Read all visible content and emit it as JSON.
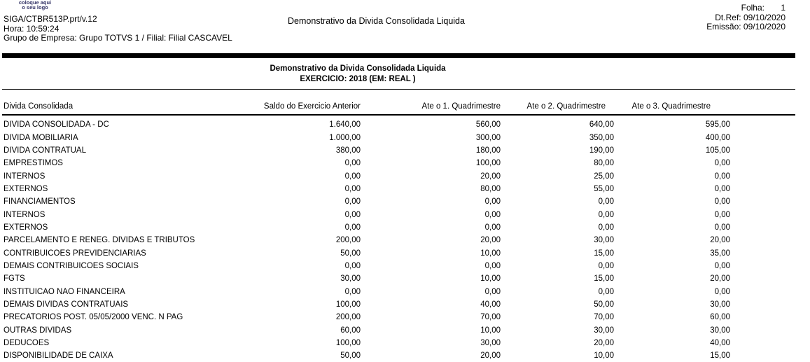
{
  "page": {
    "logo_placeholder": {
      "line1": "coloque aqui",
      "line2": "o seu logo",
      "color": "#333366"
    },
    "header": {
      "program": "SIGA/CTBR513P.prt/v.12",
      "time": "Hora: 10:59:24",
      "company": "Grupo de Empresa: Grupo TOTVS 1 / Filial: Filial CASCAVEL",
      "report_title": "Demonstrativo da Divida Consolidada Liquida",
      "folha_label": "Folha:",
      "folha_value": "1",
      "ref_date": "Dt.Ref: 09/10/2020",
      "emission_date": "Emissão: 09/10/2020"
    },
    "section": {
      "title": "Demonstrativo da Divida Consolidada Liquida",
      "subtitle": "EXERCICIO: 2018 (EM: REAL )"
    },
    "table": {
      "columns": [
        "Divida Consolidada",
        "Saldo do Exercicio Anterior",
        "Ate o 1. Quadrimestre",
        "Ate o 2. Quadrimestre",
        "Ate o 3. Quadrimestre"
      ],
      "rows": [
        [
          "DIVIDA CONSOLIDADA - DC",
          "1.640,00",
          "560,00",
          "640,00",
          "595,00"
        ],
        [
          "DIVIDA MOBILIARIA",
          "1.000,00",
          "300,00",
          "350,00",
          "400,00"
        ],
        [
          "DIVIDA CONTRATUAL",
          "380,00",
          "180,00",
          "190,00",
          "105,00"
        ],
        [
          "EMPRESTIMOS",
          "0,00",
          "100,00",
          "80,00",
          "0,00"
        ],
        [
          "INTERNOS",
          "0,00",
          "20,00",
          "25,00",
          "0,00"
        ],
        [
          "EXTERNOS",
          "0,00",
          "80,00",
          "55,00",
          "0,00"
        ],
        [
          "FINANCIAMENTOS",
          "0,00",
          "0,00",
          "0,00",
          "0,00"
        ],
        [
          "INTERNOS",
          "0,00",
          "0,00",
          "0,00",
          "0,00"
        ],
        [
          "EXTERNOS",
          "0,00",
          "0,00",
          "0,00",
          "0,00"
        ],
        [
          "PARCELAMENTO E RENEG. DIVIDAS E TRIBUTOS",
          "200,00",
          "20,00",
          "30,00",
          "20,00"
        ],
        [
          "CONTRIBUICOES PREVIDENCIARIAS",
          "50,00",
          "10,00",
          "15,00",
          "35,00"
        ],
        [
          "DEMAIS CONTRIBUICOES SOCIAIS",
          "0,00",
          "0,00",
          "0,00",
          "0,00"
        ],
        [
          "FGTS",
          "30,00",
          "10,00",
          "15,00",
          "20,00"
        ],
        [
          "INSTITUICAO NAO FINANCEIRA",
          "0,00",
          "0,00",
          "0,00",
          "0,00"
        ],
        [
          "DEMAIS DIVIDAS CONTRATUAIS",
          "100,00",
          "40,00",
          "50,00",
          "30,00"
        ],
        [
          "PRECATORIOS POST. 05/05/2000 VENC. N PAG",
          "200,00",
          "70,00",
          "70,00",
          "60,00"
        ],
        [
          "OUTRAS DIVIDAS",
          "60,00",
          "10,00",
          "30,00",
          "30,00"
        ],
        [
          "DEDUCOES",
          "100,00",
          "30,00",
          "20,00",
          "40,00"
        ],
        [
          "DISPONIBILIDADE DE CAIXA",
          "50,00",
          "20,00",
          "10,00",
          "15,00"
        ]
      ]
    }
  }
}
